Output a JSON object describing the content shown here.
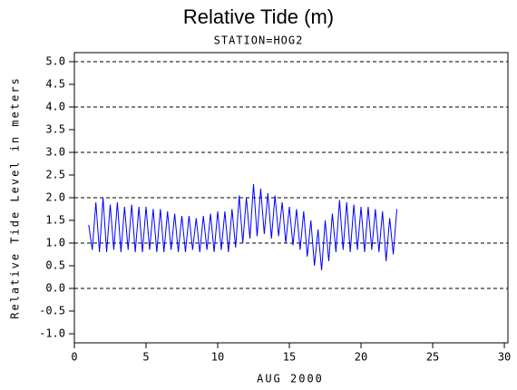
{
  "chart_data": {
    "type": "line",
    "title": "Relative Tide (m)",
    "subtitle": "STATION=HOG2",
    "xlabel": "AUG 2000",
    "ylabel": "Relative Tide Level in meters",
    "x": [
      1,
      1.25,
      1.5,
      1.75,
      2,
      2.25,
      2.5,
      2.75,
      3,
      3.25,
      3.5,
      3.75,
      4,
      4.25,
      4.5,
      4.75,
      5,
      5.25,
      5.5,
      5.75,
      6,
      6.25,
      6.5,
      6.75,
      7,
      7.25,
      7.5,
      7.75,
      8,
      8.25,
      8.5,
      8.75,
      9,
      9.25,
      9.5,
      9.75,
      10,
      10.25,
      10.5,
      10.75,
      11,
      11.25,
      11.5,
      11.75,
      12,
      12.25,
      12.5,
      12.75,
      13,
      13.25,
      13.5,
      13.75,
      14,
      14.25,
      14.5,
      14.75,
      15,
      15.25,
      15.5,
      15.75,
      16,
      16.25,
      16.5,
      16.75,
      17,
      17.25,
      17.5,
      17.75,
      18,
      18.25,
      18.5,
      18.75,
      19,
      19.25,
      19.5,
      19.75,
      20,
      20.25,
      20.5,
      20.75,
      21,
      21.25,
      21.5,
      21.75,
      22,
      22.25,
      22.5
    ],
    "series": [
      {
        "color": "#0000ff",
        "values": [
          1.4,
          0.85,
          1.9,
          0.8,
          2.0,
          0.8,
          1.85,
          0.85,
          1.9,
          0.8,
          1.8,
          0.85,
          1.85,
          0.8,
          1.8,
          0.8,
          1.8,
          0.85,
          1.75,
          0.8,
          1.75,
          0.8,
          1.7,
          0.85,
          1.65,
          0.8,
          1.6,
          0.8,
          1.6,
          0.85,
          1.55,
          0.8,
          1.6,
          0.85,
          1.65,
          0.8,
          1.7,
          0.85,
          1.7,
          0.8,
          1.75,
          0.9,
          2.05,
          1.0,
          2.0,
          1.1,
          2.3,
          1.15,
          2.2,
          1.2,
          2.1,
          1.1,
          2.05,
          1.15,
          1.9,
          1.0,
          1.8,
          0.95,
          1.75,
          0.85,
          1.7,
          0.7,
          1.5,
          0.5,
          1.3,
          0.4,
          1.5,
          0.6,
          1.65,
          0.8,
          1.95,
          0.85,
          1.9,
          0.8,
          1.85,
          0.85,
          1.8,
          0.8,
          1.8,
          0.85,
          1.75,
          0.8,
          1.7,
          0.6,
          1.55,
          0.75,
          1.75
        ]
      }
    ],
    "xlim": [
      0,
      30.25
    ],
    "ylim": [
      -1.2,
      5.2
    ],
    "xticks": [
      0,
      5,
      10,
      15,
      20,
      25,
      30
    ],
    "yticks": [
      {
        "value": 5,
        "label": "5.0"
      },
      {
        "value": 4.5,
        "label": "4.5"
      },
      {
        "value": 4,
        "label": "4.0"
      },
      {
        "value": 3.5,
        "label": "3.5"
      },
      {
        "value": 3,
        "label": "3.0"
      },
      {
        "value": 2.5,
        "label": "2.5"
      },
      {
        "value": 2,
        "label": "2.0"
      },
      {
        "value": 1.5,
        "label": "1.5"
      },
      {
        "value": 1,
        "label": "1.0"
      },
      {
        "value": 0.5,
        "label": "0.5"
      },
      {
        "value": 0,
        "label": "0.0"
      },
      {
        "value": -0.5,
        "label": "-0.5"
      },
      {
        "value": -1,
        "label": "-1.0"
      }
    ],
    "ygrid": [
      0,
      1,
      2,
      3,
      4,
      5
    ]
  }
}
